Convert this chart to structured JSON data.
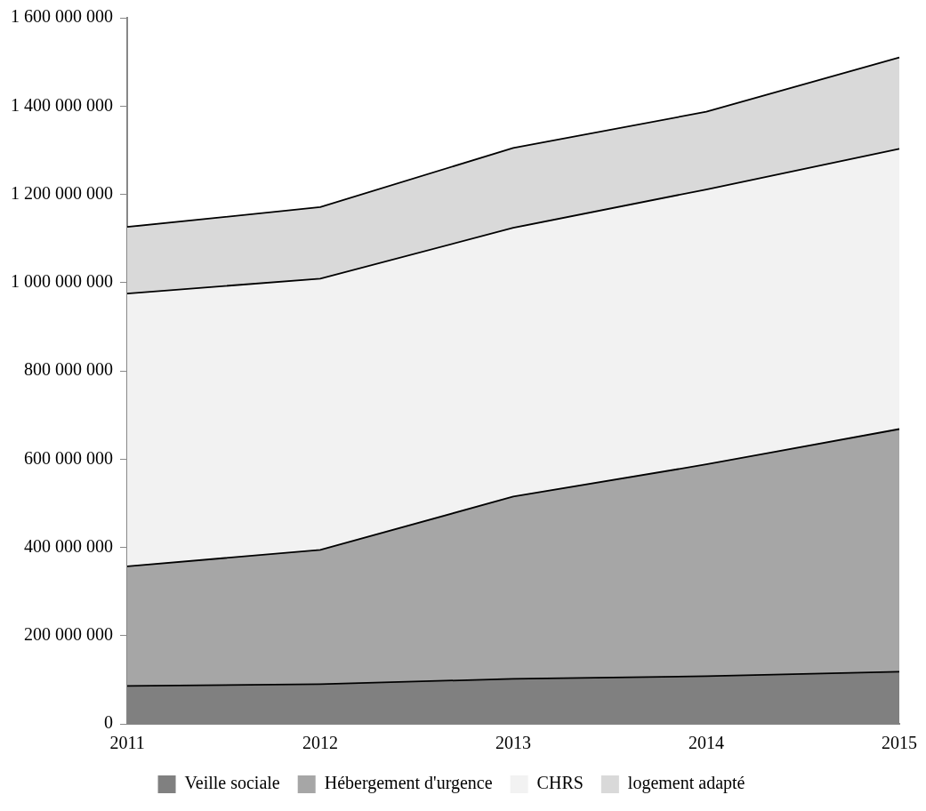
{
  "chart_data": {
    "type": "area",
    "stacked": true,
    "categories": [
      "2011",
      "2012",
      "2013",
      "2014",
      "2015"
    ],
    "series": [
      {
        "name": "Veille sociale",
        "color": "#808080",
        "values": [
          86000000,
          90000000,
          102000000,
          108000000,
          118000000
        ]
      },
      {
        "name": "Hébergement d'urgence",
        "color": "#a6a6a6",
        "values": [
          271000000,
          304000000,
          413000000,
          480000000,
          550000000
        ]
      },
      {
        "name": "CHRS",
        "color": "#f2f2f2",
        "values": [
          618000000,
          615000000,
          609000000,
          623000000,
          635000000
        ]
      },
      {
        "name": "logement adapté",
        "color": "#d9d9d9",
        "values": [
          151000000,
          162000000,
          181000000,
          176000000,
          207000000
        ]
      }
    ],
    "ylim": [
      0,
      1600000000
    ],
    "yticks": [
      {
        "value": 0,
        "label": "0"
      },
      {
        "value": 200000000,
        "label": "200 000 000"
      },
      {
        "value": 400000000,
        "label": "400 000 000"
      },
      {
        "value": 600000000,
        "label": "600 000 000"
      },
      {
        "value": 800000000,
        "label": "800 000 000"
      },
      {
        "value": 1000000000,
        "label": "1 000 000 000"
      },
      {
        "value": 1200000000,
        "label": "1 200 000 000"
      },
      {
        "value": 1400000000,
        "label": "1 400 000 000"
      },
      {
        "value": 1600000000,
        "label": "1 600 000 000"
      }
    ],
    "grid": false,
    "legend": "bottom",
    "marker": "none",
    "line_style": "solid"
  }
}
